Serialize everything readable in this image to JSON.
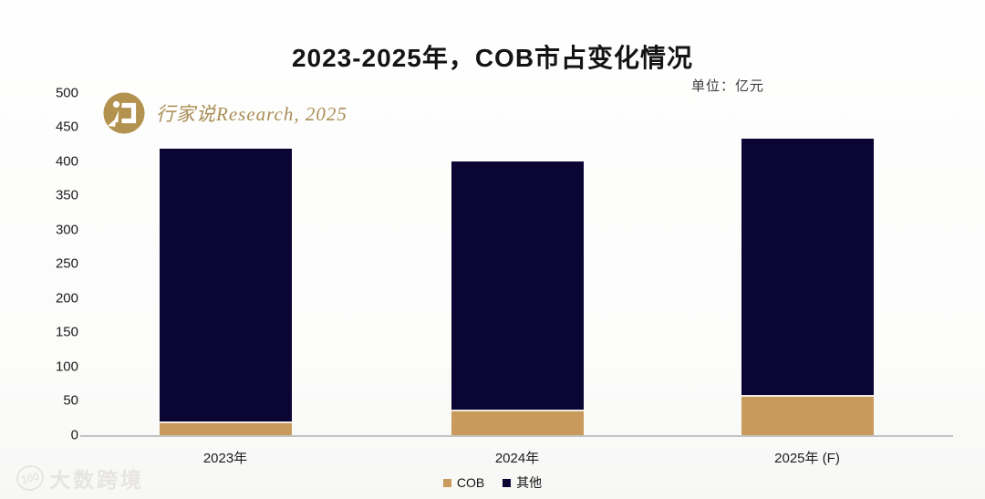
{
  "title": "2023-2025年，COB市占变化情况",
  "unit_label": "单位：亿元",
  "brand": {
    "name": "行家说Research, 2025",
    "logo_icon": "speech-bubble-icon",
    "logo_color": "#b3914e"
  },
  "watermark": {
    "badge": "100",
    "text": "大数跨境"
  },
  "colors": {
    "cob": "#c89a5c",
    "other": "#0a0533",
    "axis_line": "#c3c3c3",
    "title_text": "#141414",
    "brand_text": "#a98e55"
  },
  "chart_data": {
    "type": "bar",
    "stacked": true,
    "title": "2023-2025年，COB市占变化情况",
    "unit": "亿元",
    "categories": [
      "2023年",
      "2024年",
      "2025年 (F)"
    ],
    "series": [
      {
        "name": "COB",
        "color": "#c89a5c",
        "values": [
          17,
          35,
          56
        ]
      },
      {
        "name": "其他",
        "color": "#0a0533",
        "values": [
          401,
          365,
          377
        ]
      }
    ],
    "totals": [
      418,
      400,
      433
    ],
    "y_ticks": [
      0,
      50,
      100,
      150,
      200,
      250,
      300,
      350,
      400,
      450,
      500
    ],
    "ylim": [
      0,
      500
    ],
    "grid": false,
    "legend_position": "bottom"
  }
}
